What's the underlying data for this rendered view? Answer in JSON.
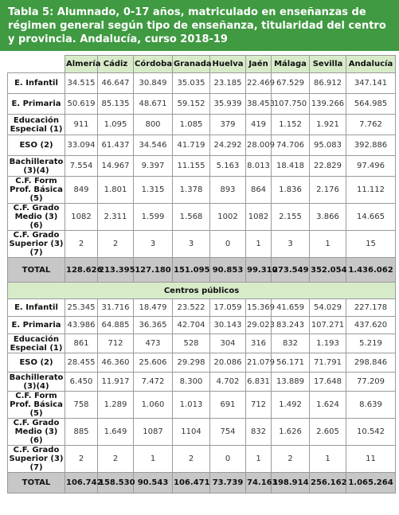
{
  "title": "Tabla 5: Alumnado, 0-17 años, matriculado en enseñanzas de régimen general según tipo de enseñanza, titularidad del centro y provincia. Andalucía, curso 2018-19",
  "columns": [
    "Almería",
    "Cádiz",
    "Córdoba",
    "Granada",
    "Huelva",
    "Jaén",
    "Málaga",
    "Sevilla",
    "Andalucía"
  ],
  "section_all": {
    "rows": [
      {
        "label": "E. Infantil",
        "values": [
          "34.515",
          "46.647",
          "30.849",
          "35.035",
          "23.185",
          "22.469",
          "67.529",
          "86.912",
          "347.141"
        ]
      },
      {
        "label": "E. Primaria",
        "values": [
          "50.619",
          "85.135",
          "48.671",
          "59.152",
          "35.939",
          "38.453",
          "107.750",
          "139.266",
          "564.985"
        ]
      },
      {
        "label": "Educación Especial (1)",
        "values": [
          "911",
          "1.095",
          "800",
          "1.085",
          "379",
          "419",
          "1.152",
          "1.921",
          "7.762"
        ]
      },
      {
        "label": "ESO (2)",
        "values": [
          "33.094",
          "61.437",
          "34.546",
          "41.719",
          "24.292",
          "28.009",
          "74.706",
          "95.083",
          "392.886"
        ]
      },
      {
        "label": "Bachillerato (3)(4)",
        "values": [
          "7.554",
          "14.967",
          "9.397",
          "11.155",
          "5.163",
          "8.013",
          "18.418",
          "22.829",
          "97.496"
        ]
      },
      {
        "label": "C.F. Form Prof. Básica (5)",
        "values": [
          "849",
          "1.801",
          "1.315",
          "1.378",
          "893",
          "864",
          "1.836",
          "2.176",
          "11.112"
        ]
      },
      {
        "label": "C.F. Grado Medio (3) (6)",
        "values": [
          "1082",
          "2.311",
          "1.599",
          "1.568",
          "1002",
          "1082",
          "2.155",
          "3.866",
          "14.665"
        ]
      },
      {
        "label": "C.F. Grado Superior (3) (7)",
        "values": [
          "2",
          "2",
          "3",
          "3",
          "0",
          "1",
          "3",
          "1",
          "15"
        ]
      }
    ],
    "total": {
      "label": "TOTAL",
      "values": [
        "128.626",
        "213.395",
        "127.180",
        "151.095",
        "90.853",
        "99.310",
        "273.549",
        "352.054",
        "1.436.062"
      ]
    }
  },
  "section_public": {
    "heading": "Centros públicos",
    "rows": [
      {
        "label": "E. Infantil",
        "values": [
          "25.345",
          "31.716",
          "18.479",
          "23.522",
          "17.059",
          "15.369",
          "41.659",
          "54.029",
          "227.178"
        ]
      },
      {
        "label": "E. Primaria",
        "values": [
          "43.986",
          "64.885",
          "36.365",
          "42.704",
          "30.143",
          "29.023",
          "83.243",
          "107.271",
          "437.620"
        ]
      },
      {
        "label": "Educación Especial (1)",
        "values": [
          "861",
          "712",
          "473",
          "528",
          "304",
          "316",
          "832",
          "1.193",
          "5.219"
        ]
      },
      {
        "label": "ESO (2)",
        "values": [
          "28.455",
          "46.360",
          "25.606",
          "29.298",
          "20.086",
          "21.079",
          "56.171",
          "71.791",
          "298.846"
        ]
      },
      {
        "label": "Bachillerato (3)(4)",
        "values": [
          "6.450",
          "11.917",
          "7.472",
          "8.300",
          "4.702",
          "6.831",
          "13.889",
          "17.648",
          "77.209"
        ]
      },
      {
        "label": "C.F. Form Prof. Básica (5)",
        "values": [
          "758",
          "1.289",
          "1.060",
          "1.013",
          "691",
          "712",
          "1.492",
          "1.624",
          "8.639"
        ]
      },
      {
        "label": "C.F. Grado Medio (3) (6)",
        "values": [
          "885",
          "1.649",
          "1087",
          "1104",
          "754",
          "832",
          "1.626",
          "2.605",
          "10.542"
        ]
      },
      {
        "label": "C.F. Grado Superior (3) (7)",
        "values": [
          "2",
          "2",
          "1",
          "2",
          "0",
          "1",
          "2",
          "1",
          "11"
        ]
      }
    ],
    "total": {
      "label": "TOTAL",
      "values": [
        "106.742",
        "158.530",
        "90.543",
        "106.471",
        "73.739",
        "74.163",
        "198.914",
        "256.162",
        "1.065.264"
      ]
    }
  }
}
